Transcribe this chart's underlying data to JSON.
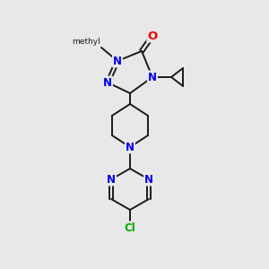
{
  "bg_color": "#e8e8e8",
  "bond_color": "#1a1a1a",
  "bond_width": 1.4,
  "atom_colors": {
    "N": "#0000ee",
    "O": "#ee0000",
    "Cl": "#00aa00",
    "C": "#1a1a1a"
  },
  "font_size_atom": 8.5,
  "font_size_small": 7.5,
  "figsize": [
    3.0,
    3.0
  ],
  "dpi": 100
}
